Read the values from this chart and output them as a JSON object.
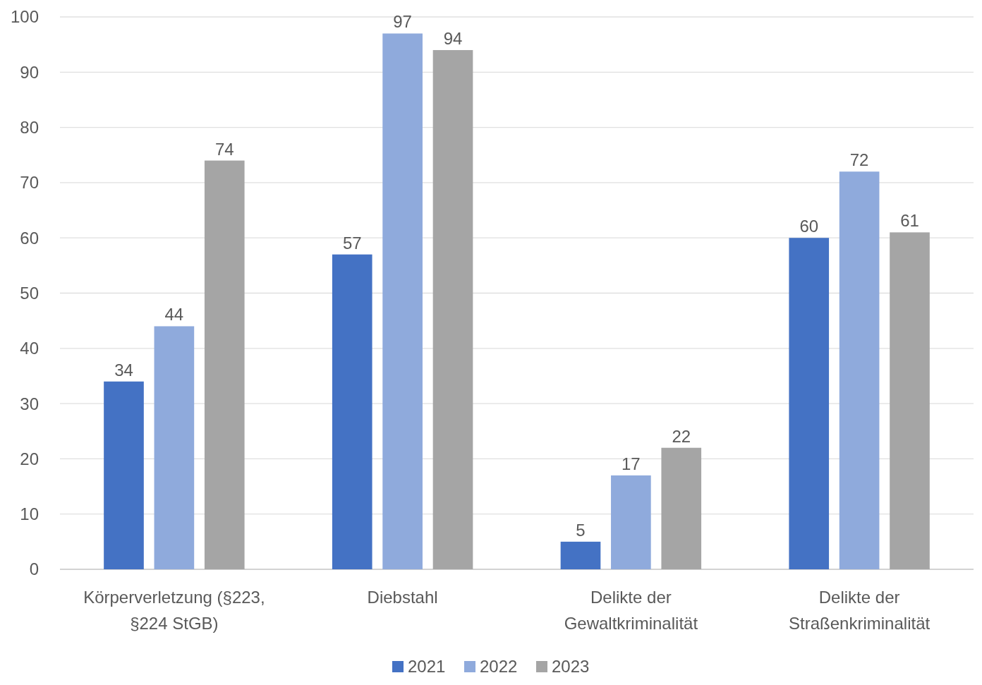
{
  "chart_data": {
    "type": "bar",
    "categories": [
      "Körperverletzung (§223, §224 StGB)",
      "Diebstahl",
      "Delikte der Gewaltkriminalität",
      "Delikte der Straßenkriminalität"
    ],
    "series": [
      {
        "name": "2021",
        "color": "#4472c4",
        "values": [
          34,
          57,
          5,
          60
        ]
      },
      {
        "name": "2022",
        "color": "#8faadc",
        "values": [
          44,
          97,
          17,
          72
        ]
      },
      {
        "name": "2023",
        "color": "#a5a5a5",
        "values": [
          74,
          94,
          22,
          61
        ]
      }
    ],
    "ylim": [
      0,
      100
    ],
    "yticks": [
      0,
      10,
      20,
      30,
      40,
      50,
      60,
      70,
      80,
      90,
      100
    ],
    "grid": "y",
    "legend": "bottom",
    "data_labels": true
  }
}
